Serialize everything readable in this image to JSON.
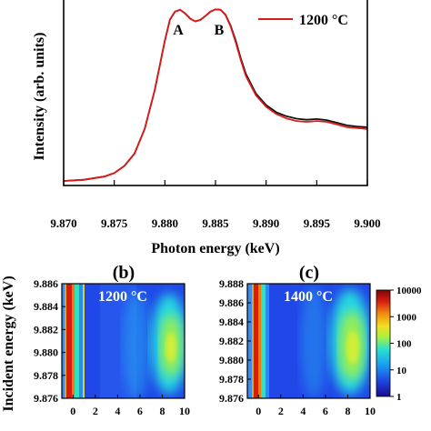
{
  "chart_data": [
    {
      "type": "line",
      "ylabel": "Intensity (arb. units)",
      "xlabel": "Photon energy (keV)",
      "xlim": [
        9.87,
        9.9
      ],
      "ylim": [
        0,
        1.0
      ],
      "x_ticks": [
        "9.870",
        "9.875",
        "9.880",
        "9.885",
        "9.890",
        "9.895",
        "9.900"
      ],
      "legend_position": "top-right",
      "annotations": [
        {
          "text": "A",
          "x": 9.8813,
          "y": 0.86
        },
        {
          "text": "B",
          "x": 9.8855,
          "y": 0.86
        }
      ],
      "series": [
        {
          "name": "1200 °C",
          "color": "#dd1a1a",
          "x": [
            9.87,
            9.872,
            9.874,
            9.875,
            9.876,
            9.877,
            9.878,
            9.879,
            9.88,
            9.8805,
            9.881,
            9.8815,
            9.882,
            9.8825,
            9.883,
            9.8835,
            9.884,
            9.8845,
            9.885,
            9.8855,
            9.886,
            9.8865,
            9.887,
            9.8875,
            9.888,
            9.889,
            9.89,
            9.891,
            9.892,
            9.893,
            9.894,
            9.895,
            9.896,
            9.897,
            9.898,
            9.899,
            9.9
          ],
          "y": [
            0.005,
            0.012,
            0.03,
            0.05,
            0.09,
            0.16,
            0.3,
            0.52,
            0.8,
            0.92,
            0.965,
            0.975,
            0.955,
            0.925,
            0.91,
            0.918,
            0.94,
            0.965,
            0.978,
            0.975,
            0.945,
            0.88,
            0.79,
            0.69,
            0.6,
            0.49,
            0.425,
            0.385,
            0.36,
            0.345,
            0.34,
            0.345,
            0.34,
            0.325,
            0.31,
            0.305,
            0.3
          ]
        },
        {
          "name": "",
          "color": "#111111",
          "x": [
            9.87,
            9.872,
            9.874,
            9.875,
            9.876,
            9.877,
            9.878,
            9.879,
            9.88,
            9.8805,
            9.881,
            9.8815,
            9.882,
            9.8825,
            9.883,
            9.8835,
            9.884,
            9.8845,
            9.885,
            9.8855,
            9.886,
            9.8865,
            9.887,
            9.8875,
            9.888,
            9.889,
            9.89,
            9.891,
            9.892,
            9.893,
            9.894,
            9.895,
            9.896,
            9.897,
            9.898,
            9.899,
            9.9
          ],
          "y": [
            0.005,
            0.012,
            0.03,
            0.05,
            0.09,
            0.16,
            0.3,
            0.52,
            0.8,
            0.92,
            0.965,
            0.975,
            0.955,
            0.925,
            0.91,
            0.918,
            0.94,
            0.965,
            0.978,
            0.975,
            0.947,
            0.885,
            0.8,
            0.7,
            0.612,
            0.5,
            0.435,
            0.395,
            0.372,
            0.358,
            0.352,
            0.356,
            0.35,
            0.335,
            0.32,
            0.314,
            0.31
          ]
        }
      ]
    },
    {
      "type": "heatmap",
      "panel_label": "(b)",
      "inset_label": "1200 °C",
      "ylabel": "Incident energy (keV)",
      "xlim": [
        -1,
        10
      ],
      "ylim": [
        9.876,
        9.886
      ],
      "x_ticks": [
        "0",
        "2",
        "4",
        "6",
        "8",
        "10"
      ],
      "y_ticks": [
        "9.876",
        "9.878",
        "9.880",
        "9.882",
        "9.884",
        "9.886"
      ]
    },
    {
      "type": "heatmap",
      "panel_label": "(c)",
      "inset_label": "1400 °C",
      "xlim": [
        -1,
        10
      ],
      "ylim": [
        9.876,
        9.888
      ],
      "x_ticks": [
        "0",
        "2",
        "4",
        "6",
        "8",
        "10"
      ],
      "y_ticks": [
        "9.876",
        "9.878",
        "9.880",
        "9.882",
        "9.884",
        "9.886",
        "9.888"
      ],
      "colorbar": {
        "scale": "log",
        "range": [
          1,
          10000
        ],
        "tick_labels": [
          "1",
          "10",
          "100",
          "1000",
          "10000"
        ],
        "colors": [
          "#1a0b8c",
          "#1f43e0",
          "#1aa0f0",
          "#27e0d0",
          "#a8f040",
          "#f0e020",
          "#f08a10",
          "#d21a10",
          "#7a0808"
        ]
      }
    }
  ]
}
